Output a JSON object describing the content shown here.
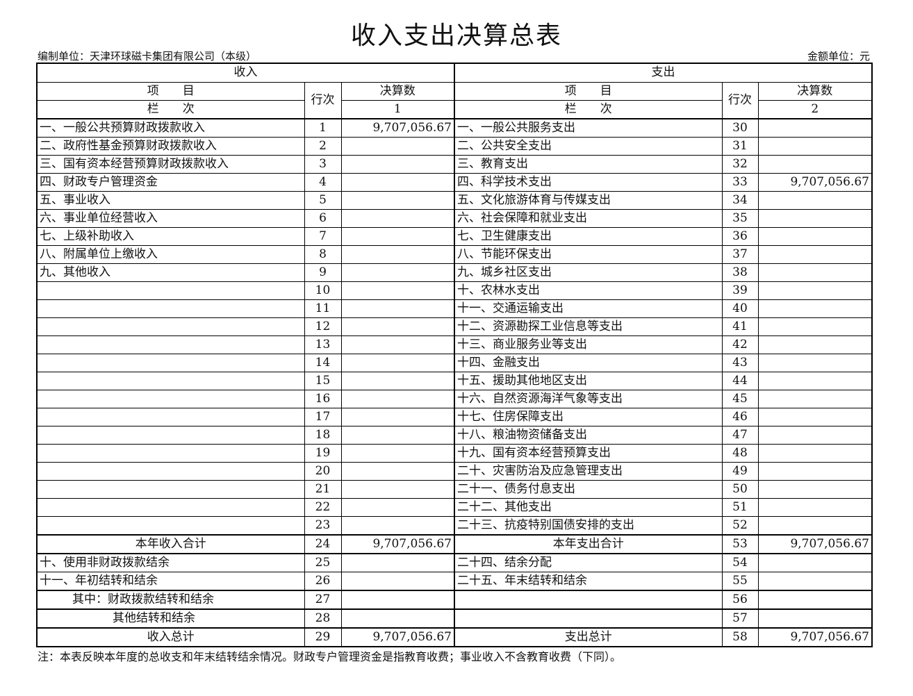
{
  "title": "收入支出决算总表",
  "unit_left": "编制单位：天津环球磁卡集团有限公司（本级）",
  "unit_right": "金额单位：元",
  "header": {
    "income": "收入",
    "expense": "支出",
    "item": "项　　目",
    "col": "栏　　次",
    "row_no": "行次",
    "amount": "决算数",
    "col_income": "1",
    "col_expense": "2"
  },
  "rows": [
    {
      "l": "一、一般公共预算财政拨款收入",
      "ln": "1",
      "la": "9,707,056.67",
      "r": "一、一般公共服务支出",
      "rn": "30",
      "ra": ""
    },
    {
      "l": "二、政府性基金预算财政拨款收入",
      "ln": "2",
      "la": "",
      "r": "二、公共安全支出",
      "rn": "31",
      "ra": ""
    },
    {
      "l": "三、国有资本经营预算财政拨款收入",
      "ln": "3",
      "la": "",
      "r": "三、教育支出",
      "rn": "32",
      "ra": ""
    },
    {
      "l": "四、财政专户管理资金",
      "ln": "4",
      "la": "",
      "r": "四、科学技术支出",
      "rn": "33",
      "ra": "9,707,056.67"
    },
    {
      "l": "五、事业收入",
      "ln": "5",
      "la": "",
      "r": "五、文化旅游体育与传媒支出",
      "rn": "34",
      "ra": ""
    },
    {
      "l": "六、事业单位经营收入",
      "ln": "6",
      "la": "",
      "r": "六、社会保障和就业支出",
      "rn": "35",
      "ra": ""
    },
    {
      "l": "七、上级补助收入",
      "ln": "7",
      "la": "",
      "r": "七、卫生健康支出",
      "rn": "36",
      "ra": ""
    },
    {
      "l": "八、附属单位上缴收入",
      "ln": "8",
      "la": "",
      "r": "八、节能环保支出",
      "rn": "37",
      "ra": ""
    },
    {
      "l": "九、其他收入",
      "ln": "9",
      "la": "",
      "r": "九、城乡社区支出",
      "rn": "38",
      "ra": ""
    },
    {
      "l": "",
      "ln": "10",
      "la": "",
      "r": "十、农林水支出",
      "rn": "39",
      "ra": ""
    },
    {
      "l": "",
      "ln": "11",
      "la": "",
      "r": "十一、交通运输支出",
      "rn": "40",
      "ra": ""
    },
    {
      "l": "",
      "ln": "12",
      "la": "",
      "r": "十二、资源勘探工业信息等支出",
      "rn": "41",
      "ra": ""
    },
    {
      "l": "",
      "ln": "13",
      "la": "",
      "r": "十三、商业服务业等支出",
      "rn": "42",
      "ra": ""
    },
    {
      "l": "",
      "ln": "14",
      "la": "",
      "r": "十四、金融支出",
      "rn": "43",
      "ra": ""
    },
    {
      "l": "",
      "ln": "15",
      "la": "",
      "r": "十五、援助其他地区支出",
      "rn": "44",
      "ra": ""
    },
    {
      "l": "",
      "ln": "16",
      "la": "",
      "r": "十六、自然资源海洋气象等支出",
      "rn": "45",
      "ra": ""
    },
    {
      "l": "",
      "ln": "17",
      "la": "",
      "r": "十七、住房保障支出",
      "rn": "46",
      "ra": ""
    },
    {
      "l": "",
      "ln": "18",
      "la": "",
      "r": "十八、粮油物资储备支出",
      "rn": "47",
      "ra": ""
    },
    {
      "l": "",
      "ln": "19",
      "la": "",
      "r": "十九、国有资本经营预算支出",
      "rn": "48",
      "ra": ""
    },
    {
      "l": "",
      "ln": "20",
      "la": "",
      "r": "二十、灾害防治及应急管理支出",
      "rn": "49",
      "ra": ""
    },
    {
      "l": "",
      "ln": "21",
      "la": "",
      "r": "二十一、债务付息支出",
      "rn": "50",
      "ra": ""
    },
    {
      "l": "",
      "ln": "22",
      "la": "",
      "r": "二十二、其他支出",
      "rn": "51",
      "ra": ""
    },
    {
      "l": "",
      "ln": "23",
      "la": "",
      "r": "二十三、抗疫特别国债安排的支出",
      "rn": "52",
      "ra": ""
    },
    {
      "l": "本年收入合计",
      "ln": "24",
      "la": "9,707,056.67",
      "r": "本年支出合计",
      "rn": "53",
      "ra": "9,707,056.67",
      "center": true
    },
    {
      "l": "十、使用非财政拨款结余",
      "ln": "25",
      "la": "",
      "r": "二十四、结余分配",
      "rn": "54",
      "ra": ""
    },
    {
      "l": "十一、年初结转和结余",
      "ln": "26",
      "la": "",
      "r": "二十五、年末结转和结余",
      "rn": "55",
      "ra": ""
    },
    {
      "l": "其中：财政拨款结转和结余",
      "ln": "27",
      "la": "",
      "r": "",
      "rn": "56",
      "ra": "",
      "indent": 50
    },
    {
      "l": "其他结转和结余",
      "ln": "28",
      "la": "",
      "r": "",
      "rn": "57",
      "ra": "",
      "indent": 108
    },
    {
      "l": "收入总计",
      "ln": "29",
      "la": "9,707,056.67",
      "r": "支出总计",
      "rn": "58",
      "ra": "9,707,056.67",
      "center": true
    }
  ],
  "note": "注：本表反映本年度的总收支和年末结转结余情况。财政专户管理资金是指教育收费；事业收入不含教育收费（下同）。"
}
